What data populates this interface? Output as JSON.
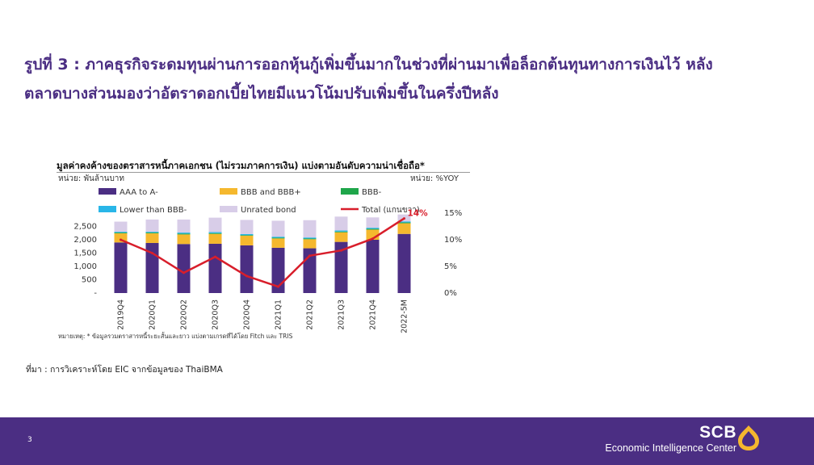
{
  "slide": {
    "title_line1": "รูปที่ 3 : ภาคธุรกิจระดมทุนผ่านการออกหุ้นกู้เพิ่มขึ้นมากในช่วงที่ผ่านมาเพื่อล็อกต้นทุนทางการเงินไว้ หลัง",
    "title_line2": "ตลาดบางส่วนมองว่าอัตราดอกเบี้ยไทยมีแนวโน้มปรับเพิ่มขึ้นในครึ่งปีหลัง",
    "footnote": "หมายเหตุ: * ข้อมูลรวมตราสารหนี้ระยะสั้นและยาว แบ่งตามเกรดที่ได้โดย Fitch และ TRIS",
    "source": "ที่มา : การวิเคราะห์โดย EIC จากข้อมูลของ ThaiBMA",
    "page_number": "3"
  },
  "brand": {
    "name": "SCB",
    "subtitle": "Economic Intelligence Center",
    "logo_icon": "scb-bell-icon",
    "logo_color": "#f5b82e"
  },
  "chart_data": {
    "type": "bar",
    "title": "มูลค่าคงค้างของตราสารหนี้ภาคเอกชน (ไม่รวมภาคการเงิน) แบ่งตามอันดับความน่าเชื่อถือ*",
    "unit_left": "หน่วย: พันล้านบาท",
    "unit_right": "หน่วย: %YOY",
    "categories": [
      "2019Q4",
      "2020Q1",
      "2020Q2",
      "2020Q3",
      "2020Q4",
      "2021Q1",
      "2021Q2",
      "2021Q3",
      "2021Q4",
      "2022-5M"
    ],
    "stacked": true,
    "series": [
      {
        "name": "AAA to A-",
        "color": "#4b2e83",
        "values": [
          1900,
          1880,
          1840,
          1850,
          1790,
          1700,
          1680,
          1920,
          2000,
          2220
        ]
      },
      {
        "name": "BBB and BBB+",
        "color": "#f5b82e",
        "values": [
          340,
          360,
          360,
          370,
          360,
          350,
          340,
          360,
          380,
          400
        ]
      },
      {
        "name": "BBB-",
        "color": "#1fa64a",
        "values": [
          30,
          30,
          30,
          30,
          25,
          25,
          25,
          30,
          30,
          30
        ]
      },
      {
        "name": "Lower than BBB-",
        "color": "#29b6e8",
        "values": [
          30,
          30,
          40,
          40,
          40,
          40,
          40,
          40,
          40,
          40
        ]
      },
      {
        "name": "Unrated bond",
        "color": "#d8cde8",
        "values": [
          380,
          460,
          490,
          540,
          530,
          600,
          650,
          520,
          390,
          260
        ]
      }
    ],
    "line_series": {
      "name": "Total (แกนขวา)",
      "color": "#d81e2b",
      "axis": "right",
      "values": [
        10,
        7.5,
        3.8,
        6.8,
        3.2,
        1.2,
        7,
        8,
        10.2,
        14
      ]
    },
    "highlight_label": "14%",
    "y_left": {
      "ticks": [
        "-",
        "500",
        "1,000",
        "1,500",
        "2,000",
        "2,500"
      ],
      "ylim": [
        0,
        3000
      ]
    },
    "y_right": {
      "ticks": [
        "0%",
        "5%",
        "10%",
        "15%"
      ],
      "ylim": [
        0,
        15
      ]
    },
    "legend_position": "top"
  }
}
